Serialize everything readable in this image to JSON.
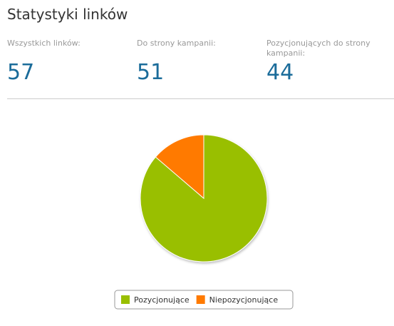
{
  "header": {
    "title": "Statystyki linków"
  },
  "stats": [
    {
      "label": "Wszystkich linków:",
      "value": 57
    },
    {
      "label": "Do strony kampanii:",
      "value": 51
    },
    {
      "label": "Pozycjonujących do strony kampanii:",
      "value": 44
    }
  ],
  "chart_data": {
    "type": "pie",
    "categories": [
      "Pozycjonujące",
      "Niepozycjonujące"
    ],
    "values": [
      44,
      7
    ],
    "colors": [
      "#99bf00",
      "#ff7a00"
    ]
  }
}
